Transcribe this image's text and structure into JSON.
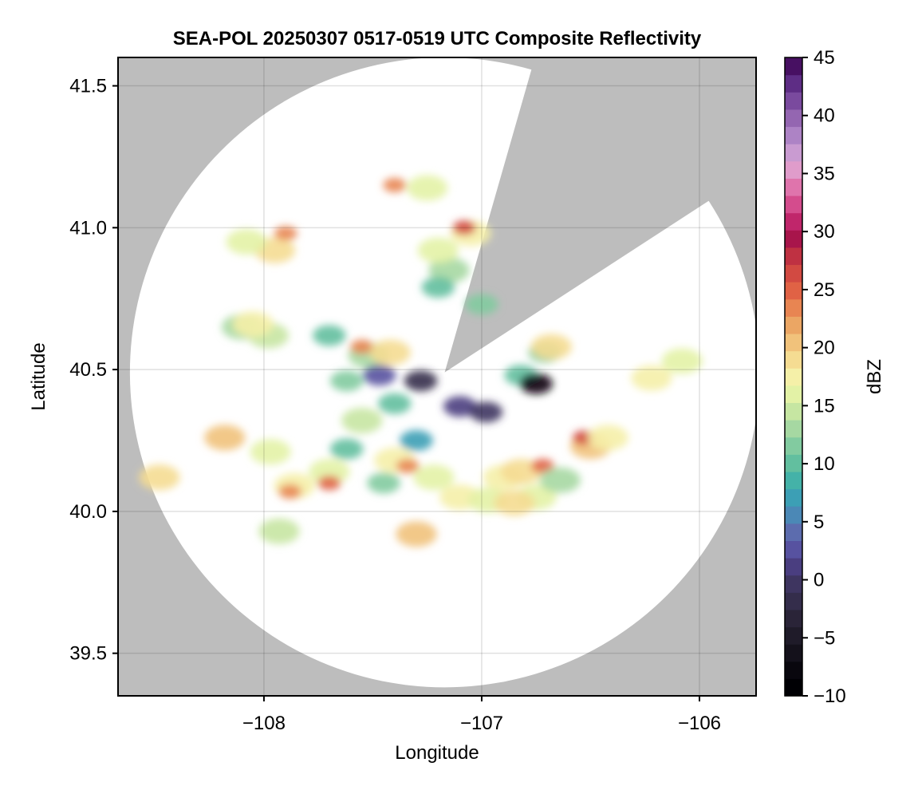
{
  "chart_data": {
    "type": "heatmap",
    "title": "SEA-POL 20250307 0517-0519 UTC Composite Reflectivity",
    "xlabel": "Longitude",
    "ylabel": "Latitude",
    "xlim": [
      -108.67,
      -105.74
    ],
    "ylim": [
      39.35,
      41.6
    ],
    "xticks": [
      -108,
      -107,
      -106
    ],
    "xtick_labels": [
      "−108",
      "−107",
      "−106"
    ],
    "yticks": [
      39.5,
      40.0,
      40.5,
      41.0,
      41.5
    ],
    "ytick_labels": [
      "39.5",
      "40.0",
      "40.5",
      "41.0",
      "41.5"
    ],
    "grid": true,
    "background_color": "#bdbdbd",
    "radar": {
      "center": [
        -107.17,
        40.49
      ],
      "range_deg_lat": 1.11,
      "blanked_sector_azimuth_deg": [
        16,
        57
      ]
    },
    "colorbar": {
      "label": "dBZ",
      "range": [
        -10,
        45
      ],
      "step": 2,
      "ticks": [
        -10,
        -5,
        0,
        5,
        10,
        15,
        20,
        25,
        30,
        35,
        40,
        45
      ],
      "tick_labels": [
        "−10",
        "−5",
        "0",
        "5",
        "10",
        "15",
        "20",
        "25",
        "30",
        "35",
        "40",
        "45"
      ],
      "colors": [
        "#000004",
        "#09070e",
        "#14111b",
        "#1f1b29",
        "#2a2438",
        "#342d4b",
        "#3e3560",
        "#4a3e80",
        "#5752a0",
        "#5c6cae",
        "#4b88b6",
        "#3c9fb5",
        "#44b2a8",
        "#62bf9f",
        "#82cba0",
        "#a6d8a2",
        "#c6e6a2",
        "#e3f2a6",
        "#f5f0a8",
        "#f5dc92",
        "#f1c27b",
        "#eba664",
        "#e88552",
        "#e06245",
        "#d24a42",
        "#bf3142",
        "#a8154b",
        "#c0266b",
        "#d44c8d",
        "#df74ac",
        "#e09ccb",
        "#c99bd1",
        "#ad83c5",
        "#9466b1",
        "#7a4a9e",
        "#5e2d85",
        "#471062"
      ]
    },
    "echoes": [
      {
        "lon": -107.52,
        "lat": 40.55,
        "dbz": 14
      },
      {
        "lon": -107.4,
        "lat": 40.38,
        "dbz": 10
      },
      {
        "lon": -107.62,
        "lat": 40.46,
        "dbz": 12
      },
      {
        "lon": -107.47,
        "lat": 40.48,
        "dbz": 3
      },
      {
        "lon": -107.28,
        "lat": 40.46,
        "dbz": -2
      },
      {
        "lon": -107.55,
        "lat": 40.32,
        "dbz": 15
      },
      {
        "lon": -107.62,
        "lat": 40.22,
        "dbz": 10
      },
      {
        "lon": -107.7,
        "lat": 40.14,
        "dbz": 16
      },
      {
        "lon": -107.7,
        "lat": 40.1,
        "dbz": 26
      },
      {
        "lon": -107.86,
        "lat": 40.09,
        "dbz": 19
      },
      {
        "lon": -107.88,
        "lat": 40.07,
        "dbz": 25
      },
      {
        "lon": -107.4,
        "lat": 40.18,
        "dbz": 18
      },
      {
        "lon": -107.34,
        "lat": 40.16,
        "dbz": 24
      },
      {
        "lon": -107.3,
        "lat": 40.25,
        "dbz": 8
      },
      {
        "lon": -107.45,
        "lat": 40.1,
        "dbz": 12
      },
      {
        "lon": -107.22,
        "lat": 40.12,
        "dbz": 16
      },
      {
        "lon": -107.1,
        "lat": 40.05,
        "dbz": 18
      },
      {
        "lon": -106.97,
        "lat": 40.04,
        "dbz": 17
      },
      {
        "lon": -106.9,
        "lat": 40.12,
        "dbz": 18
      },
      {
        "lon": -106.82,
        "lat": 40.14,
        "dbz": 20
      },
      {
        "lon": -106.72,
        "lat": 40.16,
        "dbz": 26
      },
      {
        "lon": -106.75,
        "lat": 40.05,
        "dbz": 16
      },
      {
        "lon": -106.64,
        "lat": 40.11,
        "dbz": 14
      },
      {
        "lon": -106.5,
        "lat": 40.23,
        "dbz": 22
      },
      {
        "lon": -106.53,
        "lat": 40.26,
        "dbz": 28
      },
      {
        "lon": -106.42,
        "lat": 40.26,
        "dbz": 18
      },
      {
        "lon": -106.22,
        "lat": 40.47,
        "dbz": 18
      },
      {
        "lon": -106.08,
        "lat": 40.53,
        "dbz": 17
      },
      {
        "lon": -106.71,
        "lat": 40.56,
        "dbz": 12
      },
      {
        "lon": -106.68,
        "lat": 40.58,
        "dbz": 20
      },
      {
        "lon": -106.82,
        "lat": 40.48,
        "dbz": 10
      },
      {
        "lon": -106.75,
        "lat": 40.45,
        "dbz": -8
      },
      {
        "lon": -107.1,
        "lat": 40.37,
        "dbz": 1
      },
      {
        "lon": -106.98,
        "lat": 40.35,
        "dbz": 0
      },
      {
        "lon": -107.0,
        "lat": 40.73,
        "dbz": 12
      },
      {
        "lon": -107.15,
        "lat": 40.85,
        "dbz": 14
      },
      {
        "lon": -107.05,
        "lat": 40.98,
        "dbz": 18
      },
      {
        "lon": -107.08,
        "lat": 41.0,
        "dbz": 28
      },
      {
        "lon": -107.2,
        "lat": 40.92,
        "dbz": 16
      },
      {
        "lon": -107.2,
        "lat": 40.79,
        "dbz": 11
      },
      {
        "lon": -107.55,
        "lat": 40.58,
        "dbz": 24
      },
      {
        "lon": -107.42,
        "lat": 40.56,
        "dbz": 20
      },
      {
        "lon": -107.97,
        "lat": 40.21,
        "dbz": 17
      },
      {
        "lon": -108.18,
        "lat": 40.26,
        "dbz": 22
      },
      {
        "lon": -107.3,
        "lat": 39.92,
        "dbz": 22
      },
      {
        "lon": -107.93,
        "lat": 39.93,
        "dbz": 15
      },
      {
        "lon": -108.48,
        "lat": 40.12,
        "dbz": 20
      },
      {
        "lon": -108.1,
        "lat": 40.65,
        "dbz": 14
      },
      {
        "lon": -107.98,
        "lat": 40.62,
        "dbz": 15
      },
      {
        "lon": -107.95,
        "lat": 40.92,
        "dbz": 20
      },
      {
        "lon": -108.08,
        "lat": 40.95,
        "dbz": 16
      },
      {
        "lon": -107.9,
        "lat": 40.98,
        "dbz": 24
      },
      {
        "lon": -107.4,
        "lat": 41.15,
        "dbz": 24
      },
      {
        "lon": -107.25,
        "lat": 41.14,
        "dbz": 16
      },
      {
        "lon": -108.05,
        "lat": 40.66,
        "dbz": 18
      },
      {
        "lon": -107.7,
        "lat": 40.62,
        "dbz": 10
      },
      {
        "lon": -106.85,
        "lat": 40.03,
        "dbz": 20
      }
    ]
  }
}
